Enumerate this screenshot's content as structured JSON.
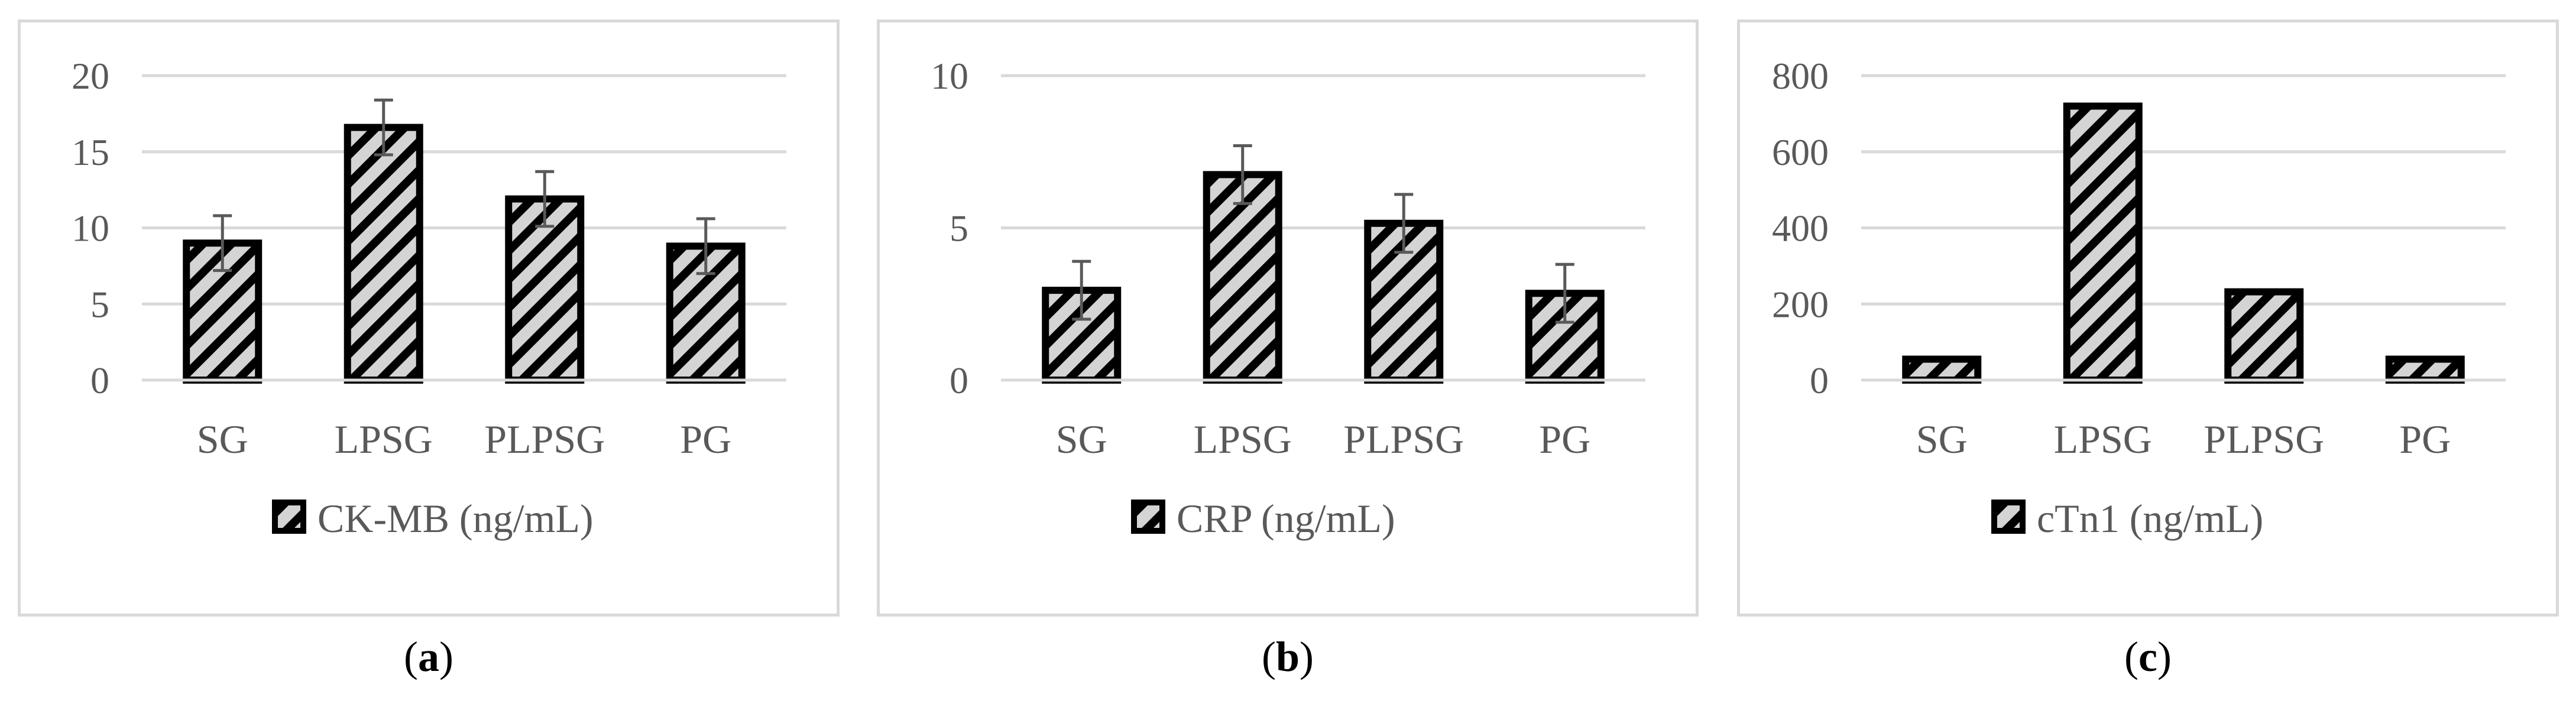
{
  "figures": [
    {
      "label": "a"
    },
    {
      "label": "b"
    },
    {
      "label": "c"
    }
  ],
  "chart_data": [
    {
      "type": "bar",
      "categories": [
        "SG",
        "LPSG",
        "PLPSG",
        "PG"
      ],
      "series": [
        {
          "name": "CK-MB (ng/mL)",
          "values": [
            9.0,
            16.6,
            11.9,
            8.8
          ],
          "errors": [
            1.8,
            1.8,
            1.8,
            1.8
          ]
        }
      ],
      "ylim": [
        0,
        20
      ],
      "yticks": [
        0,
        5,
        10,
        15,
        20
      ],
      "legend": "bottom",
      "grid": true
    },
    {
      "type": "bar",
      "categories": [
        "SG",
        "LPSG",
        "PLPSG",
        "PG"
      ],
      "series": [
        {
          "name": "CRP (ng/mL)",
          "values": [
            2.95,
            6.75,
            5.15,
            2.85
          ],
          "errors": [
            0.95,
            0.95,
            0.95,
            0.95
          ]
        }
      ],
      "ylim": [
        0,
        10
      ],
      "yticks": [
        0,
        5,
        10
      ],
      "legend": "bottom",
      "grid": true
    },
    {
      "type": "bar",
      "categories": [
        "SG",
        "LPSG",
        "PLPSG",
        "PG"
      ],
      "series": [
        {
          "name": "cTn1 (ng/mL)",
          "values": [
            55,
            720,
            232,
            55
          ],
          "errors": null
        }
      ],
      "ylim": [
        0,
        800
      ],
      "yticks": [
        0,
        200,
        400,
        600,
        800
      ],
      "legend": "bottom",
      "grid": true
    }
  ]
}
